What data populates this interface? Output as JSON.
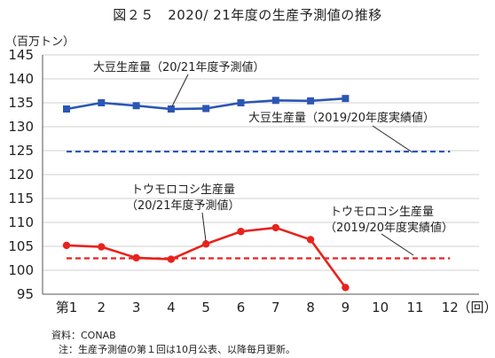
{
  "title": "図２５　2020/ 21年度の生産予測値の推移",
  "unit_label": "（百万トン）",
  "source": "資料：CONAB",
  "note": "注：生産予測値の第１回は10月公表、以降毎月更新。",
  "colors": {
    "soy": "#2b56b5",
    "corn": "#e8221d",
    "grid": "#d0d0d0",
    "axis": "#555555"
  },
  "chart_data": {
    "type": "line",
    "title": "図２５　2020/ 21年度の生産予測値の推移",
    "ylabel": "（百万トン）",
    "xlabel": "（回）",
    "ylim": [
      95,
      145
    ],
    "yticks": [
      95,
      100,
      105,
      110,
      115,
      120,
      125,
      130,
      135,
      140,
      145
    ],
    "x_tick_labels": [
      "第1",
      "2",
      "3",
      "4",
      "5",
      "6",
      "7",
      "8",
      "9",
      "10",
      "11",
      "12"
    ],
    "x_axis_unit": "（回）",
    "grid": true,
    "series": [
      {
        "name": "大豆生産量（20/21年度予測値）",
        "color": "#2b56b5",
        "style": "solid",
        "marker": "square",
        "x": [
          1,
          2,
          3,
          4,
          5,
          6,
          7,
          8,
          9
        ],
        "values": [
          133.7,
          135.0,
          134.4,
          133.7,
          133.8,
          135.0,
          135.5,
          135.4,
          135.9
        ]
      },
      {
        "name": "大豆生産量（2019/20年度実績値）",
        "color": "#2b56b5",
        "style": "dashed",
        "x": [
          1,
          12
        ],
        "values": [
          124.8,
          124.8
        ]
      },
      {
        "name": "トウモロコシ生産量（20/21年度予測値）",
        "color": "#e8221d",
        "style": "solid",
        "marker": "circle",
        "x": [
          1,
          2,
          3,
          4,
          5,
          6,
          7,
          8,
          9
        ],
        "values": [
          105.2,
          104.9,
          102.6,
          102.3,
          105.5,
          108.1,
          108.9,
          106.4,
          96.4
        ]
      },
      {
        "name": "トウモロコシ生産量（2019/20年度実績値）",
        "color": "#e8221d",
        "style": "dashed",
        "x": [
          1,
          12
        ],
        "values": [
          102.5,
          102.5
        ]
      }
    ],
    "annotations": [
      {
        "lines": [
          "大豆生産量（20/21年度予測値）"
        ],
        "points_to": "series-0",
        "at_x": 4
      },
      {
        "lines": [
          "大豆生産量（2019/20年度実績値）"
        ],
        "points_to": "series-1",
        "at_x": 10.9
      },
      {
        "lines": [
          "トウモロコシ生産量",
          "（20/21年度予測値）"
        ],
        "points_to": "series-2",
        "at_x": 5.2
      },
      {
        "lines": [
          "トウモロコシ生産量",
          "（2019/20年度実績値）"
        ],
        "points_to": "series-3",
        "at_x": 10.9
      }
    ]
  }
}
